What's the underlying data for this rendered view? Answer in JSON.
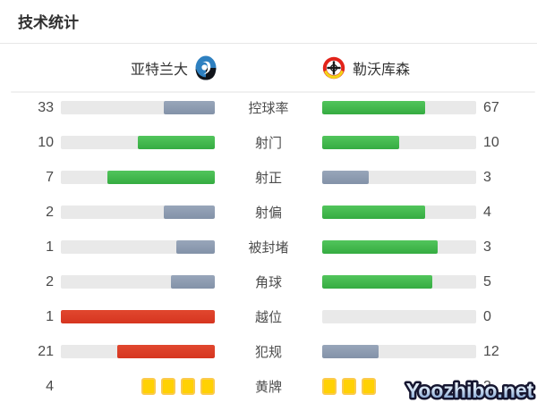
{
  "title": "技术统计",
  "teams": {
    "home": {
      "name": "亚特兰大"
    },
    "away": {
      "name": "勒沃库森"
    }
  },
  "watermark": "Yoozhibo.net",
  "colors": {
    "green": "#3cb447",
    "gray": "#8c9bb0",
    "red": "#dc3a25",
    "track": "#e9e9e9",
    "card_yellow": "#ffd103",
    "card_border": "#fbca4d",
    "watermark_fill_top": "#ffffff",
    "watermark_fill_bottom": "#6e95cb",
    "watermark_outline": "#161630"
  },
  "stats": [
    {
      "label": "控球率",
      "home": 33,
      "away": 67,
      "home_style": "gray",
      "away_style": "green",
      "kind": "bar"
    },
    {
      "label": "射门",
      "home": 10,
      "away": 10,
      "home_style": "green",
      "away_style": "green",
      "kind": "bar"
    },
    {
      "label": "射正",
      "home": 7,
      "away": 3,
      "home_style": "green",
      "away_style": "gray",
      "kind": "bar"
    },
    {
      "label": "射偏",
      "home": 2,
      "away": 4,
      "home_style": "gray",
      "away_style": "green",
      "kind": "bar"
    },
    {
      "label": "被封堵",
      "home": 1,
      "away": 3,
      "home_style": "gray",
      "away_style": "green",
      "kind": "bar"
    },
    {
      "label": "角球",
      "home": 2,
      "away": 5,
      "home_style": "gray",
      "away_style": "green",
      "kind": "bar"
    },
    {
      "label": "越位",
      "home": 1,
      "away": 0,
      "home_style": "red",
      "away_style": "none",
      "kind": "bar"
    },
    {
      "label": "犯规",
      "home": 21,
      "away": 12,
      "home_style": "red",
      "away_style": "gray",
      "kind": "bar"
    },
    {
      "label": "黄牌",
      "home": 4,
      "away": 3,
      "home_style": "cards",
      "away_style": "cards",
      "kind": "cards"
    }
  ],
  "chart_data": {
    "type": "bar",
    "title": "技术统计",
    "categories": [
      "控球率",
      "射门",
      "射正",
      "射偏",
      "被封堵",
      "角球",
      "越位",
      "犯规",
      "黄牌"
    ],
    "series": [
      {
        "name": "亚特兰大",
        "values": [
          33,
          10,
          7,
          2,
          1,
          2,
          1,
          21,
          4
        ]
      },
      {
        "name": "勒沃库森",
        "values": [
          67,
          10,
          3,
          4,
          3,
          5,
          0,
          12,
          3
        ]
      }
    ],
    "layout": "head-to-head horizontal bars, fills grow outward from center, fill length = value/(home+away)",
    "legend_position": "top team header row",
    "color_coding": "green = higher/tied positive stat, gray = lower value, red = higher value on negative stat (越位/犯规), 黄牌 shown as yellow card icons"
  }
}
